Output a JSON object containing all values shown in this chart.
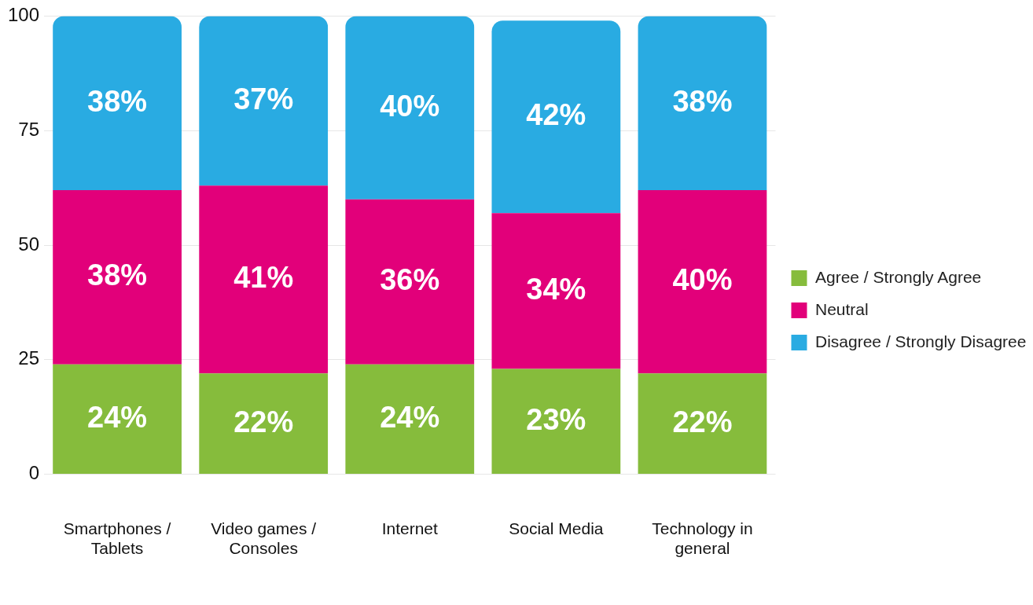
{
  "chart_data": {
    "type": "bar",
    "stacked": true,
    "categories": [
      "Smartphones / Tablets",
      "Video games / Consoles",
      "Internet",
      "Social Media",
      "Technology in general"
    ],
    "series": [
      {
        "name": "Agree / Strongly Agree",
        "color": "#86bc3c",
        "values": [
          24,
          22,
          24,
          23,
          22
        ],
        "value_labels": [
          "24%",
          "22%",
          "24%",
          "23%",
          "22%"
        ]
      },
      {
        "name": "Neutral",
        "color": "#e2007a",
        "values": [
          38,
          41,
          36,
          34,
          40
        ],
        "value_labels": [
          "38%",
          "41%",
          "36%",
          "34%",
          "40%"
        ]
      },
      {
        "name": "Disagree / Strongly Disagree",
        "color": "#29abe2",
        "values": [
          38,
          37,
          40,
          42,
          38
        ],
        "value_labels": [
          "38%",
          "37%",
          "40%",
          "42%",
          "38%"
        ]
      }
    ],
    "ylim": [
      0,
      100
    ],
    "yticks": [
      0,
      25,
      50,
      75,
      100
    ],
    "grid": "y",
    "legend": "right"
  }
}
